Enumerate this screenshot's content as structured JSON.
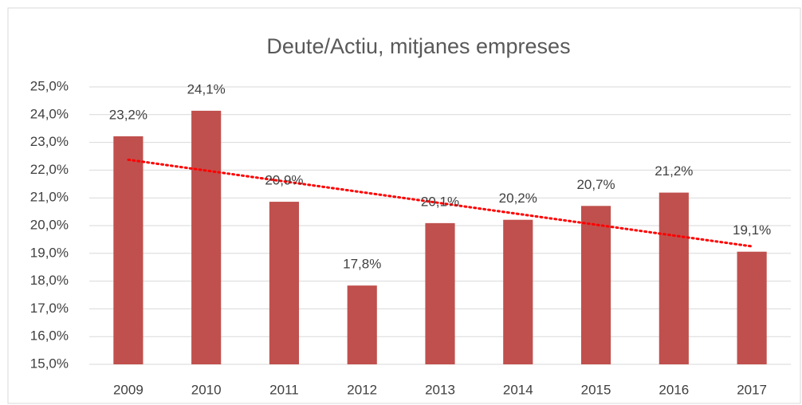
{
  "chart_data": {
    "type": "bar",
    "title": "Deute/Actiu, mitjanes empreses",
    "categories": [
      "2009",
      "2010",
      "2011",
      "2012",
      "2013",
      "2014",
      "2015",
      "2016",
      "2017"
    ],
    "values": [
      23.22,
      24.14,
      20.86,
      17.84,
      20.09,
      20.21,
      20.71,
      21.19,
      19.06
    ],
    "value_labels": [
      "23,2%",
      "24,1%",
      "20,9%",
      "17,8%",
      "20,1%",
      "20,2%",
      "20,7%",
      "21,2%",
      "19,1%"
    ],
    "color": "#c0504d",
    "ylim": [
      15,
      25
    ],
    "yticks": [
      {
        "value": 15,
        "label": "15,0%"
      },
      {
        "value": 16,
        "label": "16,0%"
      },
      {
        "value": 17,
        "label": "17,0%"
      },
      {
        "value": 18,
        "label": "18,0%"
      },
      {
        "value": 19,
        "label": "19,0%"
      },
      {
        "value": 20,
        "label": "20,0%"
      },
      {
        "value": 21,
        "label": "21,0%"
      },
      {
        "value": 22,
        "label": "22,0%"
      },
      {
        "value": 23,
        "label": "23,0%"
      },
      {
        "value": 24,
        "label": "24,0%"
      },
      {
        "value": 25,
        "label": "25,0%"
      }
    ],
    "grid": true,
    "trendline": {
      "type": "linear",
      "color": "#ff0000"
    }
  }
}
